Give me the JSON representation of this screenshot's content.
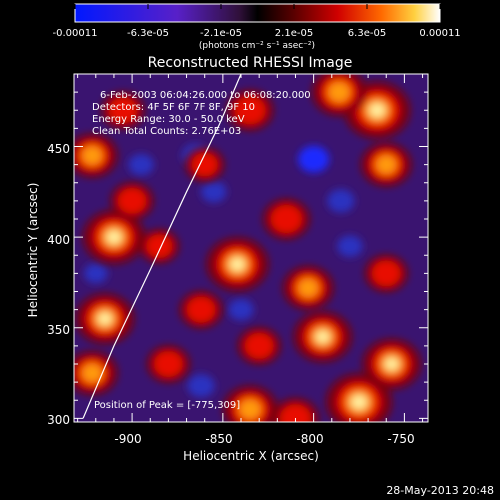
{
  "colorbar": {
    "ticks": [
      "-0.00011",
      "-6.3e-05",
      "-2.1e-05",
      "2.1e-05",
      "6.3e-05",
      "0.00011"
    ],
    "unit_label": "(photons cm⁻² s⁻¹ asec⁻²)"
  },
  "annotations": {
    "time_range": "6-Feb-2003 06:04:26.000 to 06:08:20.000",
    "detectors": "Detectors: 4F 5F 6F 7F 8F, 9F 10",
    "energy": "Energy Range: 30.0 - 50.0 keV",
    "clean": "Clean   Total Counts: 2.76E+03",
    "peak": "Position of Peak = [-775,309]"
  },
  "footer": {
    "timestamp": "28-May-2013 20:48"
  },
  "colors": {
    "background": "#000000",
    "text": "#ffffff"
  },
  "chart_data": {
    "type": "heatmap",
    "title": "Reconstructed RHESSI Image",
    "xlabel": "Heliocentric X (arcsec)",
    "ylabel": "Heliocentric Y (arcsec)",
    "xlim": [
      -932,
      -737
    ],
    "ylim": [
      298,
      490
    ],
    "x_ticks": [
      -900,
      -850,
      -800,
      -750
    ],
    "y_ticks": [
      300,
      350,
      400,
      450
    ],
    "colorbar_range": [
      -0.00011,
      0.00011
    ],
    "peak": {
      "x": -775,
      "y": 309
    },
    "limb_curve": [
      [
        -927,
        300
      ],
      [
        -910,
        340
      ],
      [
        -890,
        382
      ],
      [
        -870,
        425
      ],
      [
        -852,
        462
      ],
      [
        -840,
        490
      ]
    ],
    "blobs": [
      {
        "x": -765,
        "y": 470,
        "value": 0.00011
      },
      {
        "x": -786,
        "y": 480,
        "value": 8e-05
      },
      {
        "x": -760,
        "y": 440,
        "value": 7e-05
      },
      {
        "x": -775,
        "y": 309,
        "value": 0.00011
      },
      {
        "x": -757,
        "y": 330,
        "value": 9e-05
      },
      {
        "x": -810,
        "y": 300,
        "value": 6e-05
      },
      {
        "x": -835,
        "y": 305,
        "value": 8e-05
      },
      {
        "x": -795,
        "y": 345,
        "value": 9e-05
      },
      {
        "x": -842,
        "y": 385,
        "value": 0.0001
      },
      {
        "x": -862,
        "y": 360,
        "value": 5e-05
      },
      {
        "x": -910,
        "y": 400,
        "value": 0.0001
      },
      {
        "x": -900,
        "y": 420,
        "value": 5e-05
      },
      {
        "x": -915,
        "y": 355,
        "value": 9e-05
      },
      {
        "x": -922,
        "y": 445,
        "value": 7e-05
      },
      {
        "x": -905,
        "y": 470,
        "value": 5e-05
      },
      {
        "x": -922,
        "y": 325,
        "value": 7e-05
      },
      {
        "x": -880,
        "y": 330,
        "value": 5e-05
      },
      {
        "x": -860,
        "y": 440,
        "value": 4e-05
      },
      {
        "x": -835,
        "y": 470,
        "value": 6e-05
      },
      {
        "x": -815,
        "y": 410,
        "value": 6e-05
      },
      {
        "x": -803,
        "y": 372,
        "value": 7e-05
      },
      {
        "x": -760,
        "y": 380,
        "value": 5e-05
      },
      {
        "x": -885,
        "y": 395,
        "value": 4e-05
      },
      {
        "x": -830,
        "y": 340,
        "value": 5e-05
      }
    ],
    "dips": [
      {
        "x": -865,
        "y": 445,
        "value": -4e-05
      },
      {
        "x": -800,
        "y": 443,
        "value": -6e-05
      },
      {
        "x": -785,
        "y": 420,
        "value": -4e-05
      },
      {
        "x": -855,
        "y": 425,
        "value": -3e-05
      },
      {
        "x": -862,
        "y": 318,
        "value": -4e-05
      },
      {
        "x": -895,
        "y": 440,
        "value": -3e-05
      },
      {
        "x": -840,
        "y": 360,
        "value": -3e-05
      },
      {
        "x": -780,
        "y": 395,
        "value": -3e-05
      },
      {
        "x": -920,
        "y": 380,
        "value": -2e-05
      }
    ]
  }
}
